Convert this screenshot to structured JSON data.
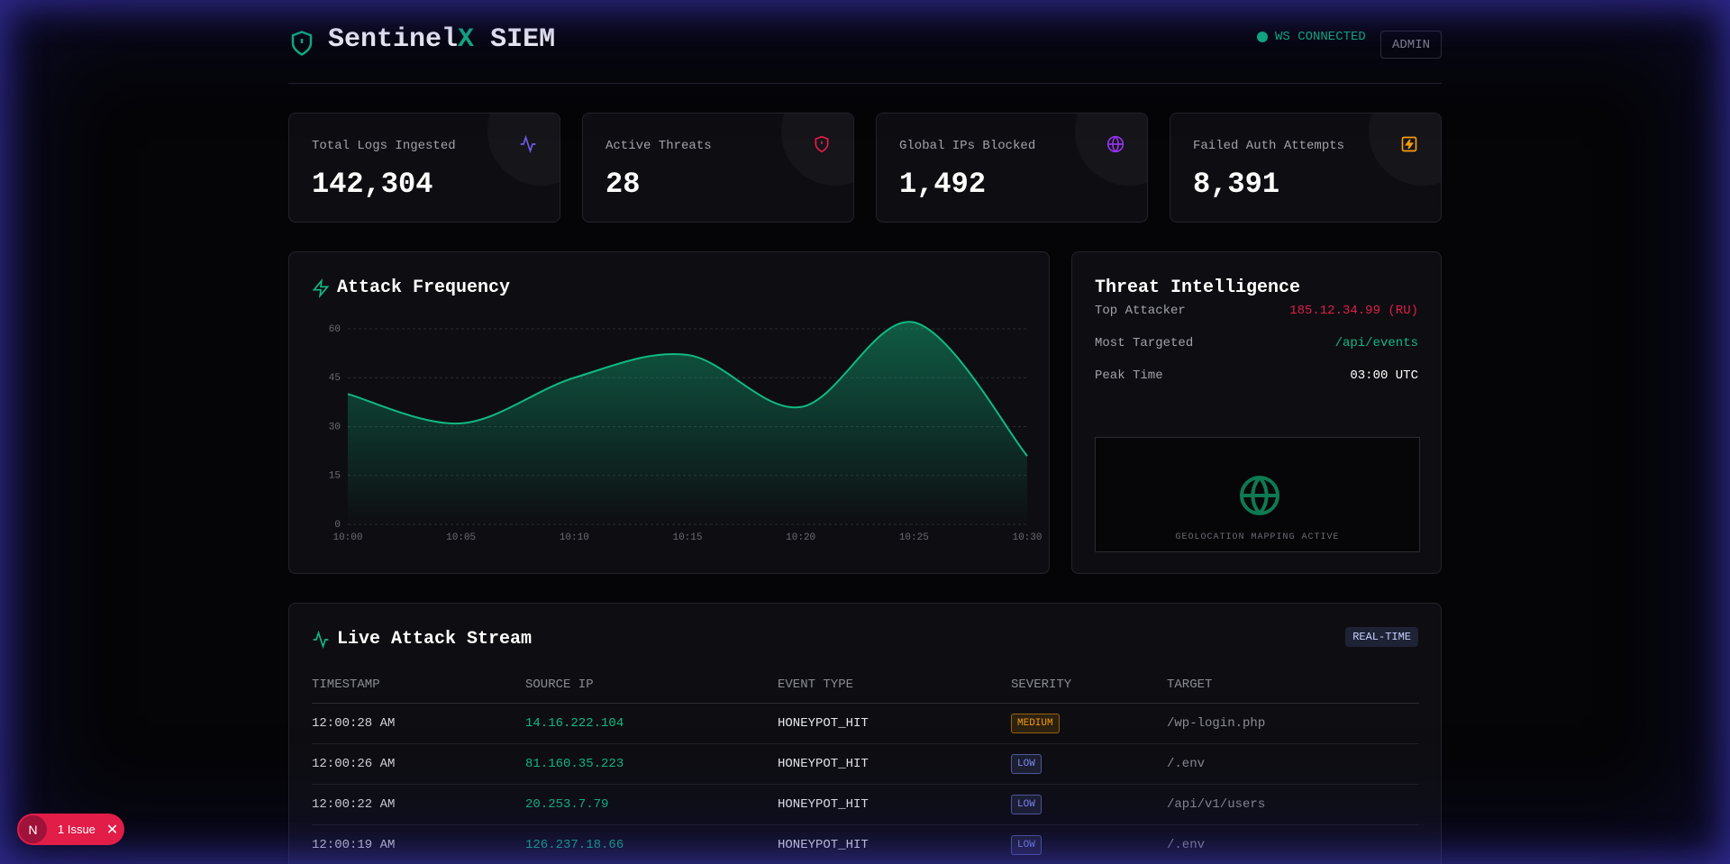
{
  "header": {
    "brand_main": "Sentinel",
    "brand_accent": "X",
    "brand_suffix": "SIEM",
    "status": "WS CONNECTED",
    "user": "ADMIN"
  },
  "stats": [
    {
      "label": "Total Logs Ingested",
      "value": "142,304",
      "color": "#6d5ce8"
    },
    {
      "label": "Active Threats",
      "value": "28",
      "color": "#e11d48"
    },
    {
      "label": "Global IPs Blocked",
      "value": "1,492",
      "color": "#9333ea"
    },
    {
      "label": "Failed Auth Attempts",
      "value": "8,391",
      "color": "#f59e0b"
    }
  ],
  "chart_data": {
    "type": "area",
    "title": "Attack Frequency",
    "categories": [
      "10:00",
      "10:05",
      "10:10",
      "10:15",
      "10:20",
      "10:25",
      "10:30"
    ],
    "values": [
      40,
      31,
      45,
      52,
      36,
      62,
      21
    ],
    "color": "#10b981",
    "ylim": [
      0,
      60
    ],
    "yticks": [
      0,
      15,
      30,
      45,
      60
    ],
    "grid": true
  },
  "threat_intel": {
    "title": "Threat Intelligence",
    "rows": [
      {
        "label": "Top Attacker",
        "value": "185.12.34.99 (RU)",
        "color": "#e11d48"
      },
      {
        "label": "Most Targeted",
        "value": "/api/events",
        "color": "#10b981"
      },
      {
        "label": "Peak Time",
        "value": "03:00 UTC",
        "color": "#ffffff"
      }
    ],
    "map_caption": "GEOLOCATION MAPPING ACTIVE"
  },
  "stream": {
    "title": "Live Attack Stream",
    "badge": "REAL-TIME",
    "columns": [
      "TIMESTAMP",
      "SOURCE IP",
      "EVENT TYPE",
      "SEVERITY",
      "TARGET"
    ],
    "rows": [
      {
        "cells": [
          "12:00:28 AM",
          "14.16.222.104",
          "HONEYPOT_HIT",
          "MEDIUM",
          "/wp-login.php"
        ],
        "severity_color": "#f59e0b"
      },
      {
        "cells": [
          "12:00:26 AM",
          "81.160.35.223",
          "HONEYPOT_HIT",
          "LOW",
          "/.env"
        ],
        "severity_color": "#818cf8"
      },
      {
        "cells": [
          "12:00:22 AM",
          "20.253.7.79",
          "HONEYPOT_HIT",
          "LOW",
          "/api/v1/users"
        ],
        "severity_color": "#818cf8"
      },
      {
        "cells": [
          "12:00:19 AM",
          "126.237.18.66",
          "HONEYPOT_HIT",
          "LOW",
          "/.env"
        ],
        "severity_color": "#818cf8"
      }
    ]
  },
  "issue_badge": {
    "icon": "N",
    "label": "1 Issue"
  }
}
